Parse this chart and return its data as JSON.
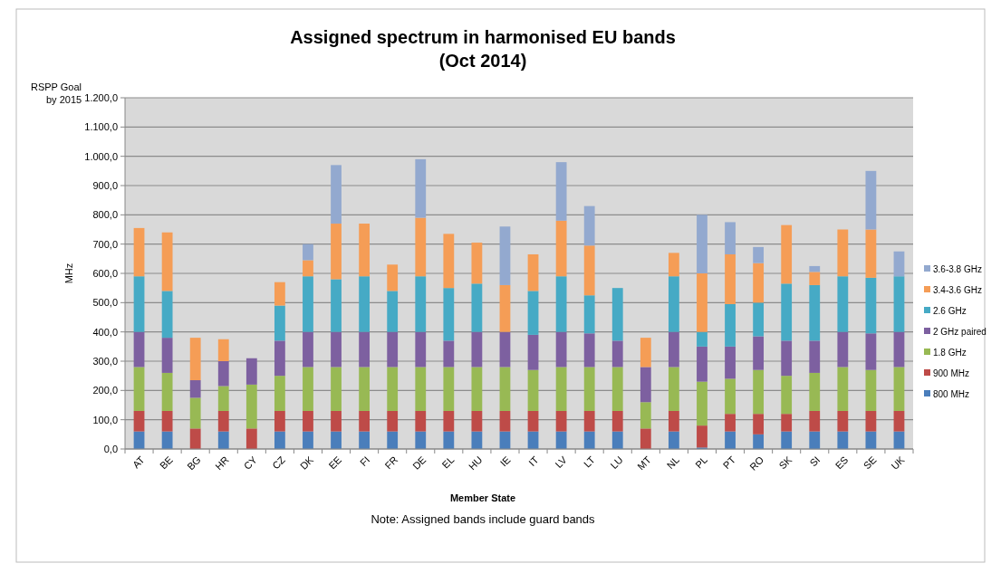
{
  "chart_data": {
    "type": "bar",
    "stacked": true,
    "title": "Assigned spectrum in harmonised EU bands\n(Oct 2014)",
    "xlabel": "Member State",
    "ylabel": "MHz",
    "annotations": [
      "RSPP Goal\nby 2015",
      "Note: Assigned bands include guard bands"
    ],
    "categories": [
      "AT",
      "BE",
      "BG",
      "HR",
      "CY",
      "CZ",
      "DK",
      "EE",
      "FI",
      "FR",
      "DE",
      "EL",
      "HU",
      "IE",
      "IT",
      "LV",
      "LT",
      "LU",
      "MT",
      "NL",
      "PL",
      "PT",
      "RO",
      "SK",
      "SI",
      "ES",
      "SE",
      "UK"
    ],
    "series": [
      {
        "name": "800 MHz",
        "color": "#4a7ebb",
        "values": [
          60,
          60,
          0,
          60,
          0,
          60,
          60,
          60,
          60,
          60,
          60,
          60,
          60,
          60,
          60,
          60,
          60,
          60,
          0,
          60,
          5,
          60,
          50,
          60,
          60,
          60,
          60,
          60
        ]
      },
      {
        "name": "900 MHz",
        "color": "#be4b48",
        "values": [
          70,
          70,
          70,
          70,
          70,
          70,
          70,
          70,
          70,
          70,
          70,
          70,
          70,
          70,
          70,
          70,
          70,
          70,
          70,
          70,
          75,
          60,
          70,
          60,
          70,
          70,
          70,
          70
        ]
      },
      {
        "name": "1.8 GHz",
        "color": "#98b954",
        "values": [
          150,
          130,
          105,
          85,
          150,
          120,
          150,
          150,
          150,
          150,
          150,
          150,
          150,
          150,
          140,
          150,
          150,
          150,
          90,
          150,
          150,
          120,
          150,
          130,
          130,
          150,
          140,
          150
        ]
      },
      {
        "name": "2 GHz paired",
        "color": "#7d60a0",
        "values": [
          120,
          120,
          60,
          85,
          90,
          120,
          120,
          120,
          120,
          120,
          120,
          90,
          120,
          120,
          120,
          120,
          115,
          90,
          120,
          120,
          120,
          110,
          115,
          120,
          110,
          120,
          125,
          120
        ]
      },
      {
        "name": "2.6 GHz",
        "color": "#46aac5",
        "values": [
          190,
          160,
          0,
          0,
          0,
          120,
          190,
          180,
          190,
          140,
          190,
          180,
          165,
          0,
          150,
          190,
          130,
          180,
          0,
          190,
          50,
          145,
          115,
          195,
          190,
          190,
          190,
          190
        ]
      },
      {
        "name": "3.4-3.6 GHz",
        "color": "#f59d56",
        "values": [
          165,
          200,
          145,
          75,
          0,
          80,
          55,
          190,
          180,
          90,
          200,
          185,
          140,
          160,
          125,
          190,
          170,
          0,
          100,
          80,
          200,
          170,
          135,
          200,
          45,
          160,
          165,
          0
        ]
      },
      {
        "name": "3.6-3.8 GHz",
        "color": "#93a9cf",
        "values": [
          0,
          0,
          0,
          0,
          0,
          0,
          55,
          200,
          0,
          0,
          200,
          0,
          0,
          200,
          0,
          200,
          135,
          0,
          0,
          0,
          200,
          110,
          55,
          0,
          20,
          0,
          200,
          85
        ]
      }
    ],
    "ylim": [
      0,
      1200
    ],
    "yticks": [
      {
        "value": 0,
        "label": "0,0"
      },
      {
        "value": 100,
        "label": "100,0"
      },
      {
        "value": 200,
        "label": "200,0"
      },
      {
        "value": 300,
        "label": "300,0"
      },
      {
        "value": 400,
        "label": "400,0"
      },
      {
        "value": 500,
        "label": "500,0"
      },
      {
        "value": 600,
        "label": "600,0"
      },
      {
        "value": 700,
        "label": "700,0"
      },
      {
        "value": 800,
        "label": "800,0"
      },
      {
        "value": 900,
        "label": "900,0"
      },
      {
        "value": 1000,
        "label": "1.000,0"
      },
      {
        "value": 1100,
        "label": "1.100,0"
      },
      {
        "value": 1200,
        "label": "1.200,0"
      }
    ],
    "grid": "y",
    "legend": "right"
  }
}
